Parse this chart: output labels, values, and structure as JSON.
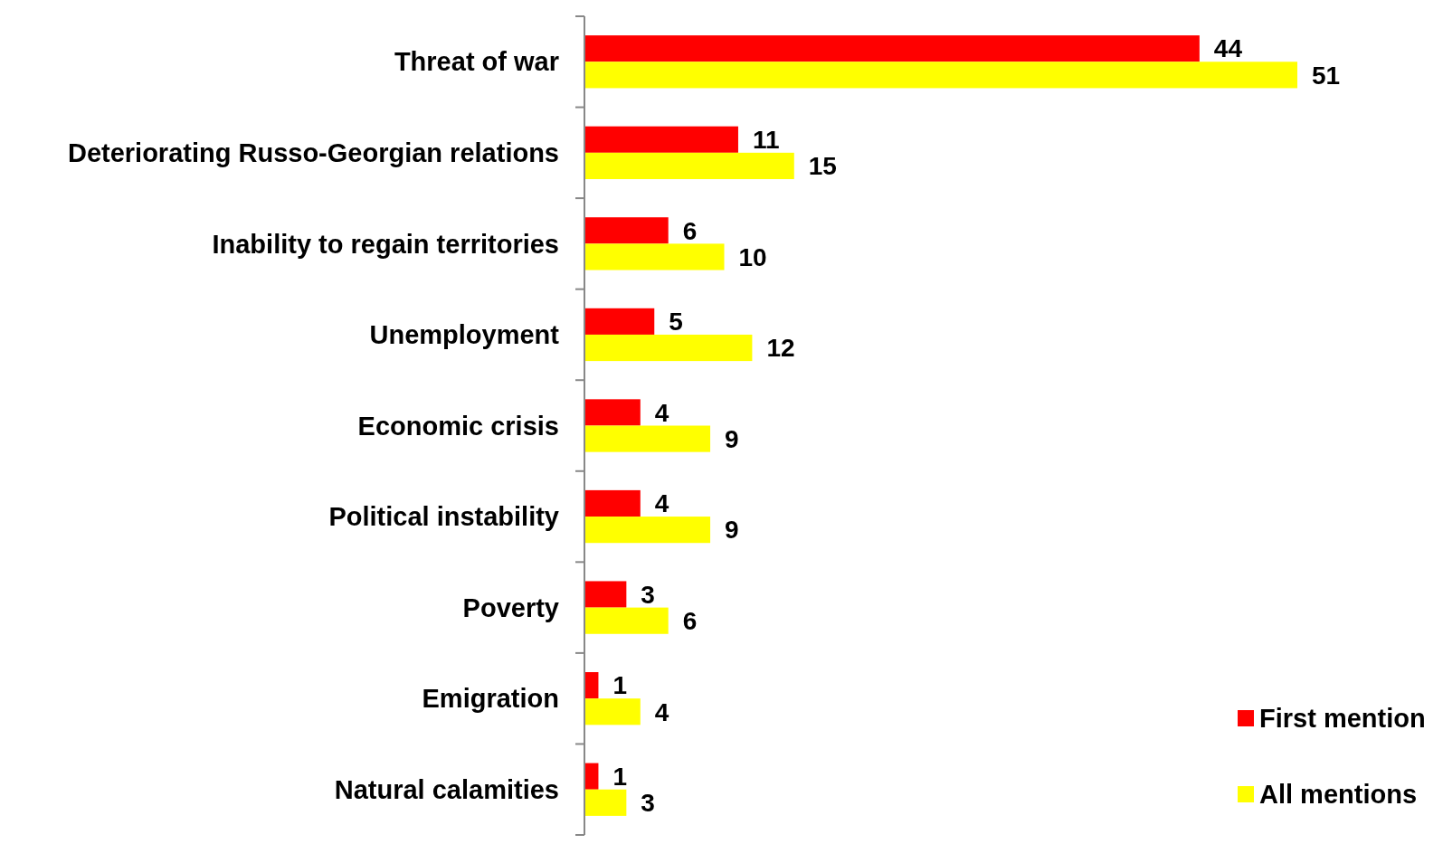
{
  "chart_data": {
    "type": "bar",
    "orientation": "horizontal",
    "categories": [
      "Threat of war",
      "Deteriorating Russo-Georgian relations",
      "Inability to regain territories",
      "Unemployment",
      "Economic crisis",
      "Political instability",
      "Poverty",
      "Emigration",
      "Natural calamities"
    ],
    "series": [
      {
        "name": "First mention",
        "color": "#ff0000",
        "values": [
          44,
          11,
          6,
          5,
          4,
          4,
          3,
          1,
          1
        ]
      },
      {
        "name": "All mentions",
        "color": "#ffff00",
        "values": [
          51,
          15,
          10,
          12,
          9,
          9,
          6,
          4,
          3
        ]
      }
    ],
    "data_labels": true,
    "legend": "bottom right"
  }
}
